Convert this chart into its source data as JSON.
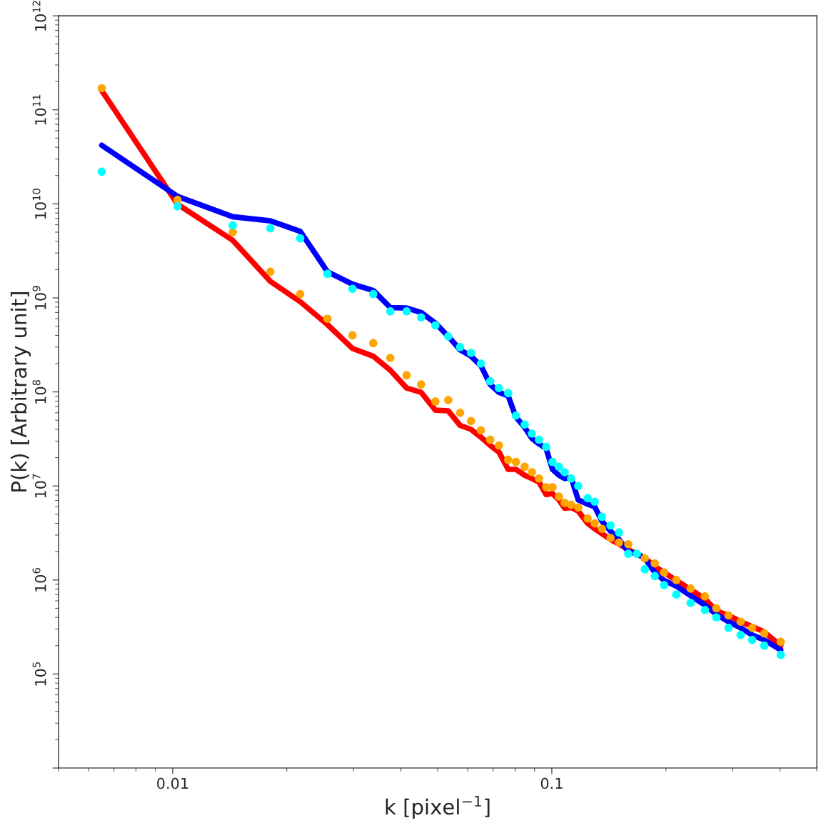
{
  "chart_data": {
    "type": "line",
    "xlabel": "k [pixel$^{−1}$]",
    "ylabel": "P(k) [Arbitrary unit]",
    "log": "xy",
    "grid": false,
    "legend": false,
    "x": [
      0.0065,
      0.0103,
      0.0144,
      0.0181,
      0.0217,
      0.0256,
      0.0298,
      0.0338,
      0.0375,
      0.0414,
      0.0452,
      0.0493,
      0.0533,
      0.0573,
      0.0612,
      0.065,
      0.0688,
      0.0725,
      0.0767,
      0.0804,
      0.0848,
      0.0886,
      0.0925,
      0.0966,
      0.1004,
      0.1044,
      0.1081,
      0.1124,
      0.1174,
      0.1243,
      0.1298,
      0.1356,
      0.1428,
      0.1504,
      0.1591,
      0.1677,
      0.1759,
      0.1869,
      0.1978,
      0.213,
      0.2323,
      0.2534,
      0.2716,
      0.2924,
      0.3148,
      0.3376,
      0.3634,
      0.4016
    ],
    "xlim": [
      0.005,
      0.5
    ],
    "xticks": [
      0.01,
      0.1
    ],
    "ylim": [
      10000.0,
      1000000000000.0
    ],
    "yticks": [
      {
        "value": 10000.0,
        "label": null
      },
      {
        "value": 100000.0,
        "label": "10$^{5}$"
      },
      {
        "value": 1000000.0,
        "label": "10$^{6}$"
      },
      {
        "value": 10000000.0,
        "label": "10$^{7}$"
      },
      {
        "value": 100000000.0,
        "label": "10$^{8}$"
      },
      {
        "value": 1000000000.0,
        "label": "10$^{9}$"
      },
      {
        "value": 10000000000.0,
        "label": "10$^{10}$"
      },
      {
        "value": 100000000000.0,
        "label": "10$^{11}$"
      },
      {
        "value": 1000000000000.0,
        "label": "10$^{12}$"
      }
    ],
    "series": [
      {
        "color": "#ff0000",
        "values": [
          160000000000.0,
          9900000000.0,
          4100000000.0,
          1500000000.0,
          910000000.0,
          520000000.0,
          290000000.0,
          240000000.0,
          170000000.0,
          110000000.0,
          99000000.0,
          64000000.0,
          63000000.0,
          44000000.0,
          40000000.0,
          33000000.0,
          27000000.0,
          23000000.0,
          15000000.0,
          15000000.0,
          13000000.0,
          12000000.0,
          11000000.0,
          8100000.0,
          8300000.0,
          7100000.0,
          5800000.0,
          5900000.0,
          5400000.0,
          4000000.0,
          3500000.0,
          3100000.0,
          2700000.0,
          2400000.0,
          2100000.0,
          1900000.0,
          1700000.0,
          1400000.0,
          1200000.0,
          990000.0,
          790000.0,
          630000.0,
          470000.0,
          420000.0,
          360000.0,
          320000.0,
          280000.0,
          200000.0
        ]
      },
      {
        "color": "#0000ff",
        "values": [
          42000000000.0,
          12000000000.0,
          7300000000.0,
          6600000000.0,
          5100000000.0,
          1900000000.0,
          1400000000.0,
          1200000000.0,
          790000000.0,
          780000000.0,
          700000000.0,
          540000000.0,
          390000000.0,
          280000000.0,
          240000000.0,
          190000000.0,
          120000000.0,
          99000000.0,
          91000000.0,
          54000000.0,
          42000000.0,
          32000000.0,
          28000000.0,
          25000000.0,
          15000000.0,
          13000000.0,
          12000000.0,
          12300000.0,
          7100000.0,
          6400000.0,
          6000000.0,
          4200000.0,
          3300000.0,
          2700000.0,
          2000000.0,
          1900000.0,
          1700000.0,
          1200000.0,
          990000.0,
          860000.0,
          680000.0,
          540000.0,
          430000.0,
          360000.0,
          310000.0,
          260000.0,
          230000.0,
          180000.0
        ]
      },
      {
        "type": "scatter",
        "color": "#ffa500",
        "values": [
          170000000000.0,
          11000000000.0,
          5000000000.0,
          1900000000.0,
          1100000000.0,
          600000000.0,
          400000000.0,
          330000000.0,
          230000000.0,
          150000000.0,
          120000000.0,
          79000000.0,
          82000000.0,
          60000000.0,
          49000000.0,
          39000000.0,
          31000000.0,
          27000000.0,
          19000000.0,
          18000000.0,
          16000000.0,
          14000000.0,
          12000000.0,
          9700000.0,
          9700000.0,
          7700000.0,
          6600000.0,
          6300000.0,
          5900000.0,
          4500000.0,
          4000000.0,
          3500000.0,
          2800000.0,
          2500000.0,
          2400000.0,
          null,
          1700000.0,
          1500000.0,
          1200000.0,
          1000000.0,
          810000.0,
          670000.0,
          500000.0,
          420000.0,
          360000.0,
          310000.0,
          270000.0,
          220000.0
        ]
      },
      {
        "type": "scatter",
        "color": "#00ffff",
        "values": [
          22000000000.0,
          9400000000.0,
          5900000000.0,
          5500000000.0,
          4300000000.0,
          1800000000.0,
          1250000000.0,
          1100000000.0,
          720000000.0,
          720000000.0,
          620000000.0,
          510000000.0,
          390000000.0,
          300000000.0,
          260000000.0,
          200000000.0,
          130000000.0,
          110000000.0,
          97000000.0,
          56000000.0,
          45000000.0,
          36000000.0,
          31000000.0,
          26000000.0,
          18000000.0,
          16000000.0,
          14000000.0,
          12000000.0,
          10000000.0,
          7400000.0,
          6800000.0,
          4700000.0,
          3800000.0,
          3200000.0,
          1900000.0,
          1900000.0,
          1300000.0,
          1100000.0,
          880000.0,
          700000.0,
          570000.0,
          480000.0,
          400000.0,
          310000.0,
          260000.0,
          230000.0,
          200000.0,
          160000.0
        ]
      }
    ]
  }
}
